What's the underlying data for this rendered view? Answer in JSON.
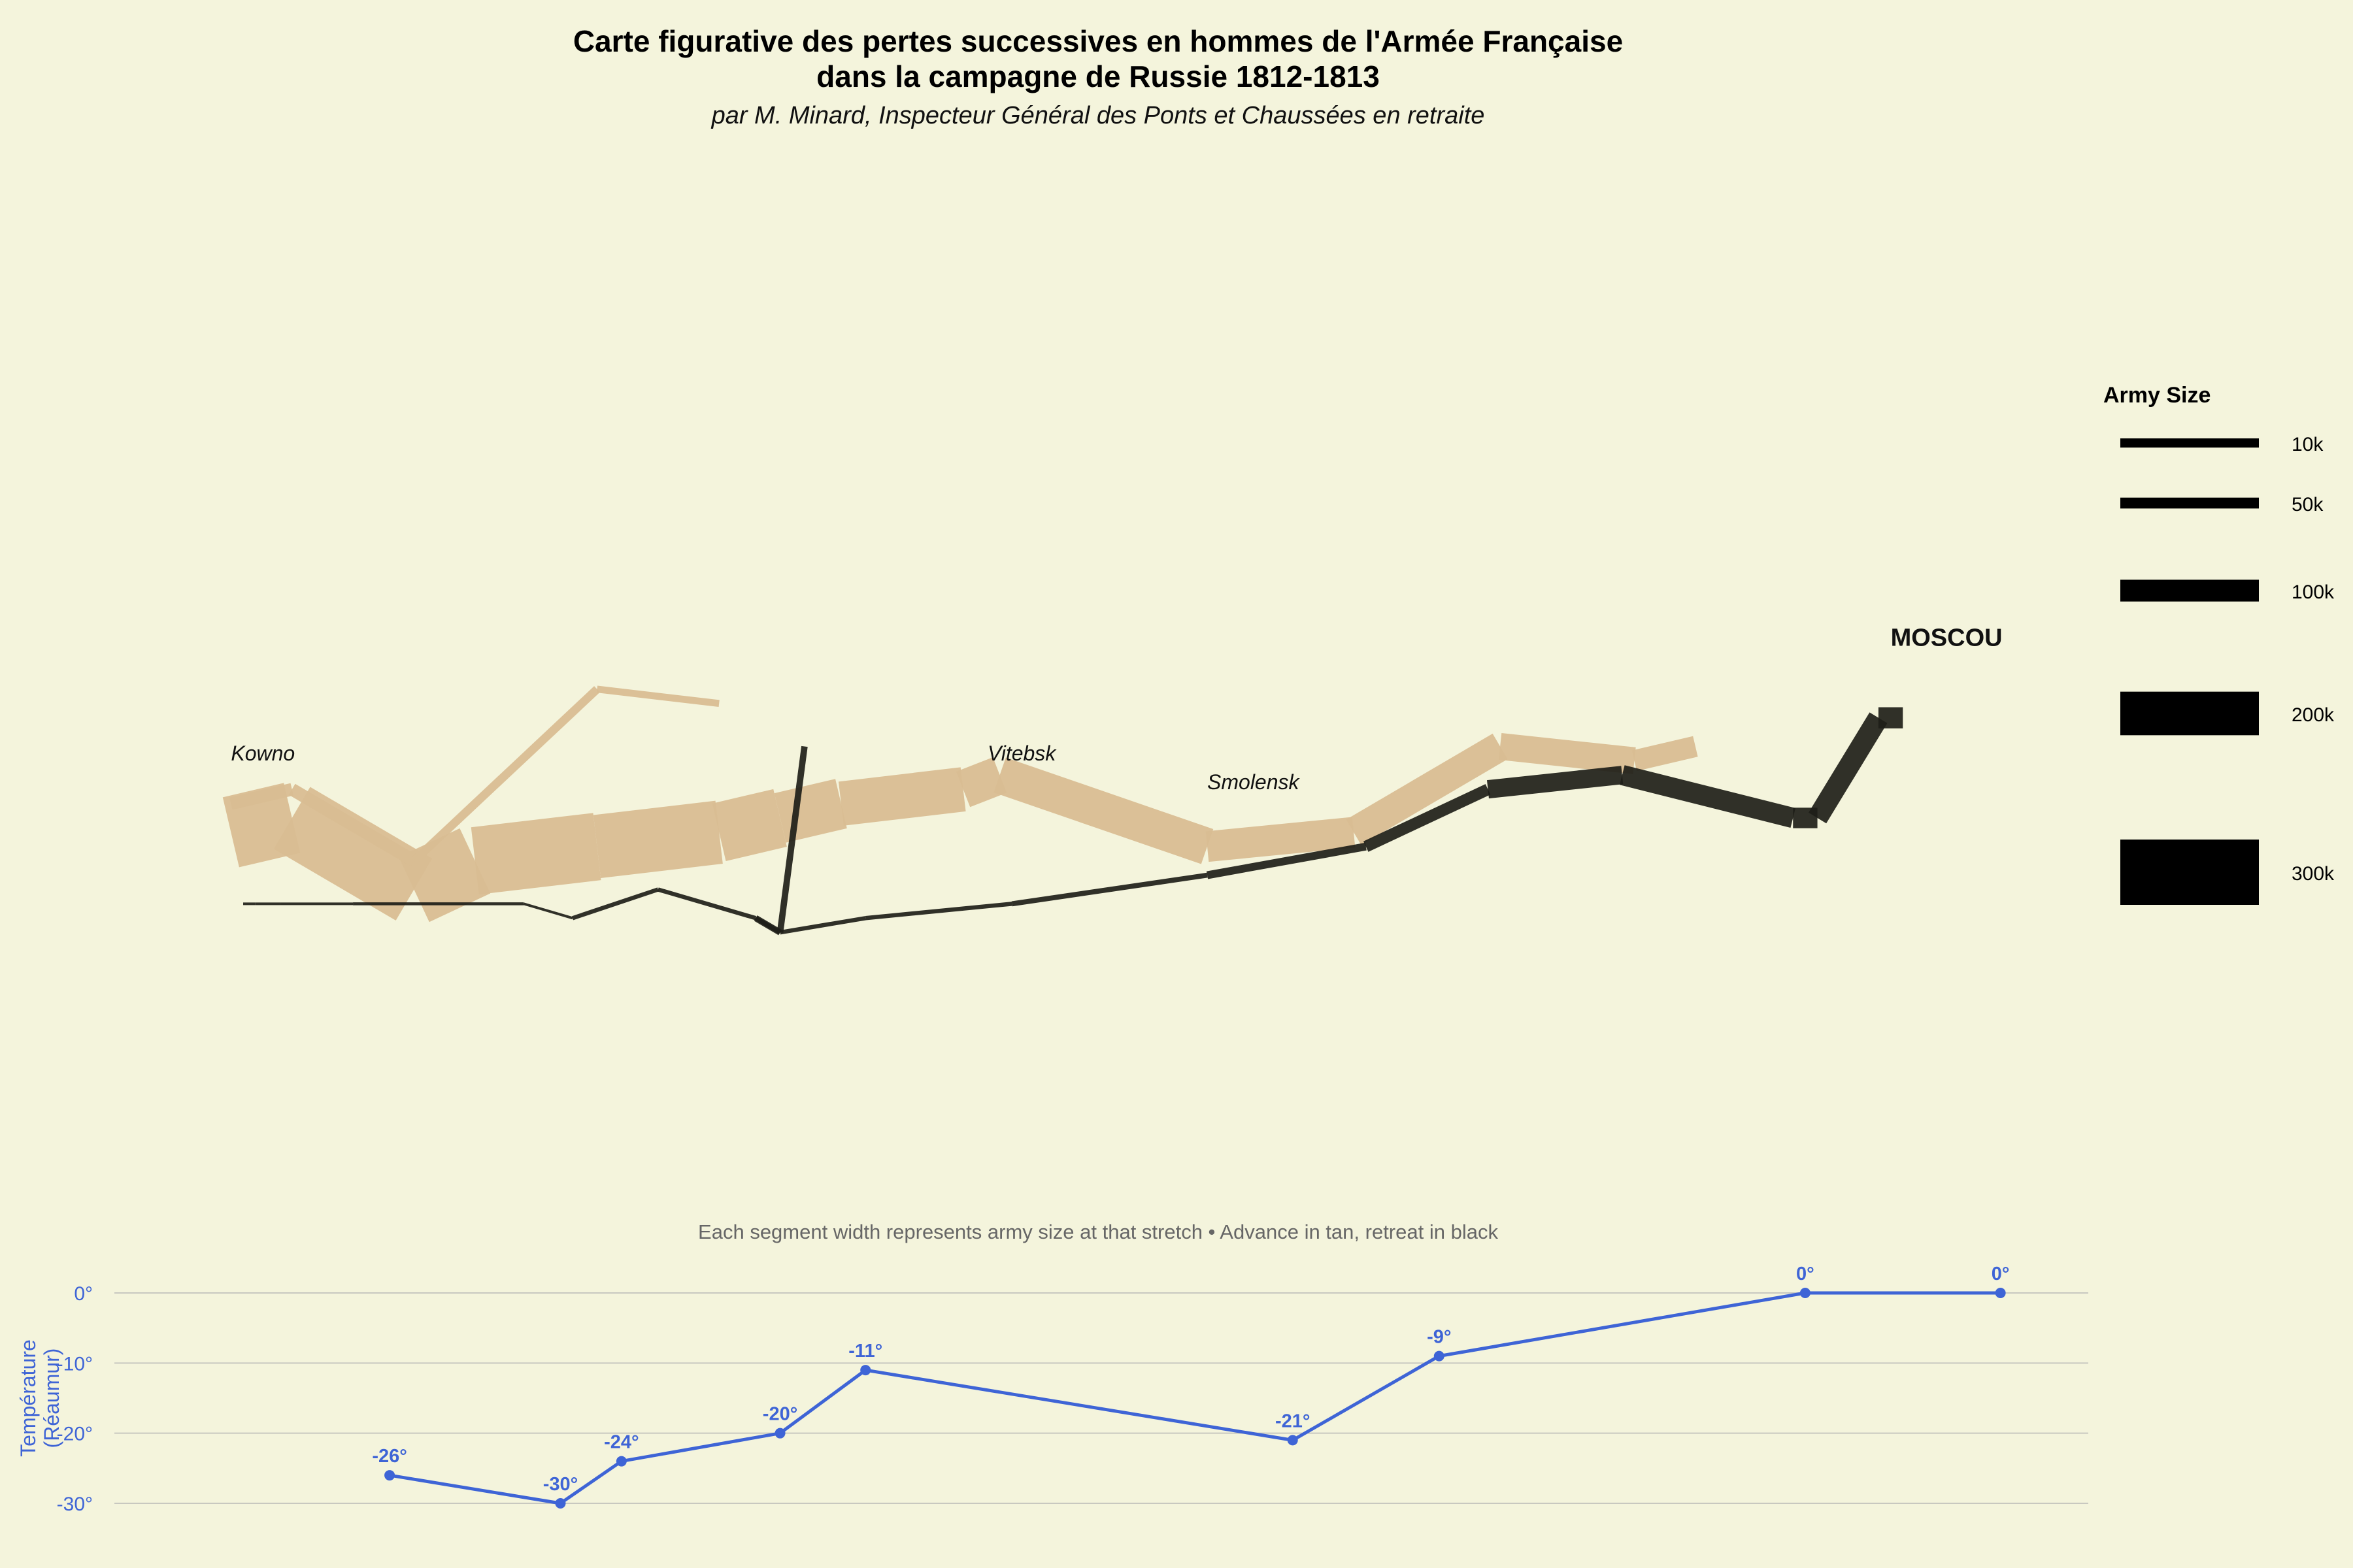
{
  "title_line1": "Carte figurative des pertes successives en hommes de l'Armée Française",
  "title_line2": "dans la campagne de Russie 1812-1813",
  "subtitle": "par M. Minard, Inspecteur Général des Ponts et Chaussées en retraite",
  "caption": "Each segment width represents army size at that stretch • Advance in tan, retreat in black",
  "colors": {
    "background": "#f4f4dc",
    "advance": "#d9bd92",
    "retreat": "#1e1e18",
    "temperature": "#3e64d6"
  },
  "chart_data": [
    {
      "type": "flow-map",
      "x_unit": "longitude",
      "y_unit": "latitude",
      "xlim": [
        23.5,
        39.3
      ],
      "ylim": [
        53.0,
        57.6
      ],
      "cities": [
        {
          "name": "Kowno",
          "lon": 24.0,
          "lat": 55.0,
          "style": "italic"
        },
        {
          "name": "Vitebsk",
          "lon": 30.2,
          "lat": 55.0,
          "style": "italic"
        },
        {
          "name": "Smolensk",
          "lon": 32.0,
          "lat": 54.8,
          "style": "italic"
        },
        {
          "name": "MOSCOU",
          "lon": 37.6,
          "lat": 55.8,
          "style": "bold"
        }
      ],
      "series": [
        {
          "name": "Advance",
          "path": [
            {
              "lon": 24.0,
              "lat": 54.9,
              "army": 340000
            },
            {
              "lon": 24.5,
              "lat": 55.0,
              "army": 340000
            },
            {
              "lon": 25.5,
              "lat": 54.5,
              "army": 340000
            },
            {
              "lon": 26.0,
              "lat": 54.7,
              "army": 320000
            },
            {
              "lon": 27.0,
              "lat": 54.8,
              "army": 300000
            },
            {
              "lon": 28.0,
              "lat": 54.9,
              "army": 280000
            },
            {
              "lon": 28.5,
              "lat": 55.0,
              "army": 240000
            },
            {
              "lon": 29.0,
              "lat": 55.1,
              "army": 210000
            },
            {
              "lon": 30.0,
              "lat": 55.2,
              "army": 180000
            },
            {
              "lon": 30.3,
              "lat": 55.3,
              "army": 175000
            },
            {
              "lon": 32.0,
              "lat": 54.8,
              "army": 145000
            },
            {
              "lon": 33.2,
              "lat": 54.9,
              "army": 140000
            },
            {
              "lon": 34.4,
              "lat": 55.5,
              "army": 127100
            },
            {
              "lon": 35.5,
              "lat": 55.4,
              "army": 100000
            },
            {
              "lon": 36.0,
              "lat": 55.5,
              "army": 100000
            }
          ]
        },
        {
          "name": "Advance (northern detachment)",
          "path": [
            {
              "lon": 24.0,
              "lat": 55.1,
              "army": 60000
            },
            {
              "lon": 24.5,
              "lat": 55.2,
              "army": 60000
            },
            {
              "lon": 25.5,
              "lat": 54.7,
              "army": 40000
            },
            {
              "lon": 27.0,
              "lat": 55.9,
              "army": 33000
            },
            {
              "lon": 28.0,
              "lat": 55.8,
              "army": 33000
            }
          ]
        },
        {
          "name": "Retreat",
          "path": [
            {
              "lon": 37.7,
              "lat": 55.7,
              "army": 100000
            },
            {
              "lon": 37.5,
              "lat": 55.7,
              "army": 98000
            },
            {
              "lon": 37.0,
              "lat": 55.0,
              "army": 97000
            },
            {
              "lon": 36.8,
              "lat": 55.0,
              "army": 96000
            },
            {
              "lon": 35.4,
              "lat": 55.3,
              "army": 87000
            },
            {
              "lon": 34.3,
              "lat": 55.2,
              "army": 55000
            },
            {
              "lon": 33.3,
              "lat": 54.8,
              "army": 37000
            },
            {
              "lon": 32.0,
              "lat": 54.6,
              "army": 24000
            },
            {
              "lon": 30.4,
              "lat": 54.4,
              "army": 20000
            },
            {
              "lon": 29.2,
              "lat": 54.3,
              "army": 20000
            },
            {
              "lon": 28.5,
              "lat": 54.2,
              "army": 20000
            },
            {
              "lon": 28.3,
              "lat": 54.3,
              "army": 20000
            },
            {
              "lon": 27.5,
              "lat": 54.5,
              "army": 20000
            },
            {
              "lon": 26.8,
              "lat": 54.3,
              "army": 12000
            },
            {
              "lon": 26.4,
              "lat": 54.4,
              "army": 14000
            },
            {
              "lon": 25.0,
              "lat": 54.4,
              "army": 8000
            },
            {
              "lon": 24.4,
              "lat": 54.4,
              "army": 4000
            },
            {
              "lon": 24.2,
              "lat": 54.4,
              "army": 4000
            },
            {
              "lon": 24.1,
              "lat": 54.4,
              "army": 4000
            }
          ]
        },
        {
          "name": "Retreat (northern corps rejoining)",
          "path": [
            {
              "lon": 28.7,
              "lat": 55.5,
              "army": 30000
            },
            {
              "lon": 28.5,
              "lat": 54.2,
              "army": 30000
            },
            {
              "lon": 28.3,
              "lat": 54.3,
              "army": 28000
            }
          ]
        }
      ],
      "legend": {
        "title": "Army Size",
        "position": "right",
        "items": [
          {
            "label": "10k",
            "value": 10000
          },
          {
            "label": "50k",
            "value": 50000
          },
          {
            "label": "100k",
            "value": 100000
          },
          {
            "label": "200k",
            "value": 200000
          },
          {
            "label": "300k",
            "value": 300000
          }
        ]
      }
    },
    {
      "type": "line",
      "xlabel": "",
      "ylabel": "Température (Réaumur)",
      "ylim": [
        -30,
        0
      ],
      "yticks": [
        0,
        -10,
        -20,
        -30
      ],
      "ytick_labels": [
        "0°",
        "-10°",
        "-20°",
        "-30°"
      ],
      "grid": true,
      "x": [
        25.3,
        26.7,
        27.2,
        28.5,
        29.2,
        32.7,
        33.9,
        36.9,
        38.5
      ],
      "values": [
        -26,
        -30,
        -24,
        -20,
        -11,
        -21,
        -9,
        0,
        0
      ],
      "labels": [
        "-26°",
        "-30°",
        "-24°",
        "-20°",
        "-11°",
        "-21°",
        "-9°",
        "0°",
        "0°"
      ]
    }
  ]
}
